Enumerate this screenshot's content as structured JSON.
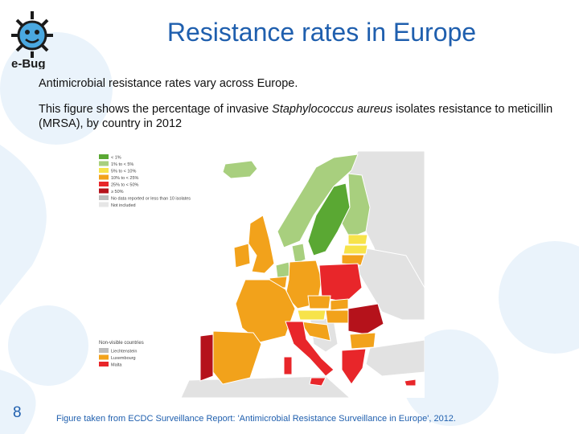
{
  "slide": {
    "title": "Resistance rates in Europe",
    "subtitle1": "Antimicrobial resistance rates vary across Europe.",
    "subtitle2_prefix": "This figure shows the percentage of invasive ",
    "subtitle2_italic": "Staphylococcus aureus",
    "subtitle2_suffix": " isolates resistance to meticillin (MRSA), by country in 2012",
    "page_number": "8",
    "source": "Figure taken from ECDC Surveillance Report: 'Antimicrobial Resistance Surveillance in Europe', 2012."
  },
  "logo": {
    "text": "e-Bug",
    "icon": "sun-bug-icon"
  },
  "map": {
    "legend": [
      {
        "label": "< 1%",
        "color": "#5aa833"
      },
      {
        "label": "1% to < 5%",
        "color": "#a8cf7e"
      },
      {
        "label": "5% to < 10%",
        "color": "#f7e34a"
      },
      {
        "label": "10% to < 25%",
        "color": "#f2a21b"
      },
      {
        "label": "25% to < 50%",
        "color": "#e8262a"
      },
      {
        "label": "≥ 50%",
        "color": "#b5121b"
      },
      {
        "label": "No data reported or less than 10 isolates",
        "color": "#bdbdbd"
      },
      {
        "label": "Not included",
        "color": "#e6e6e6"
      }
    ],
    "small_countries": {
      "heading": "Non-visible countries",
      "items": [
        {
          "label": "Liechtenstein",
          "color": "#bdbdbd"
        },
        {
          "label": "Luxembourg",
          "color": "#f2a21b"
        },
        {
          "label": "Malta",
          "color": "#e8262a"
        }
      ]
    }
  }
}
